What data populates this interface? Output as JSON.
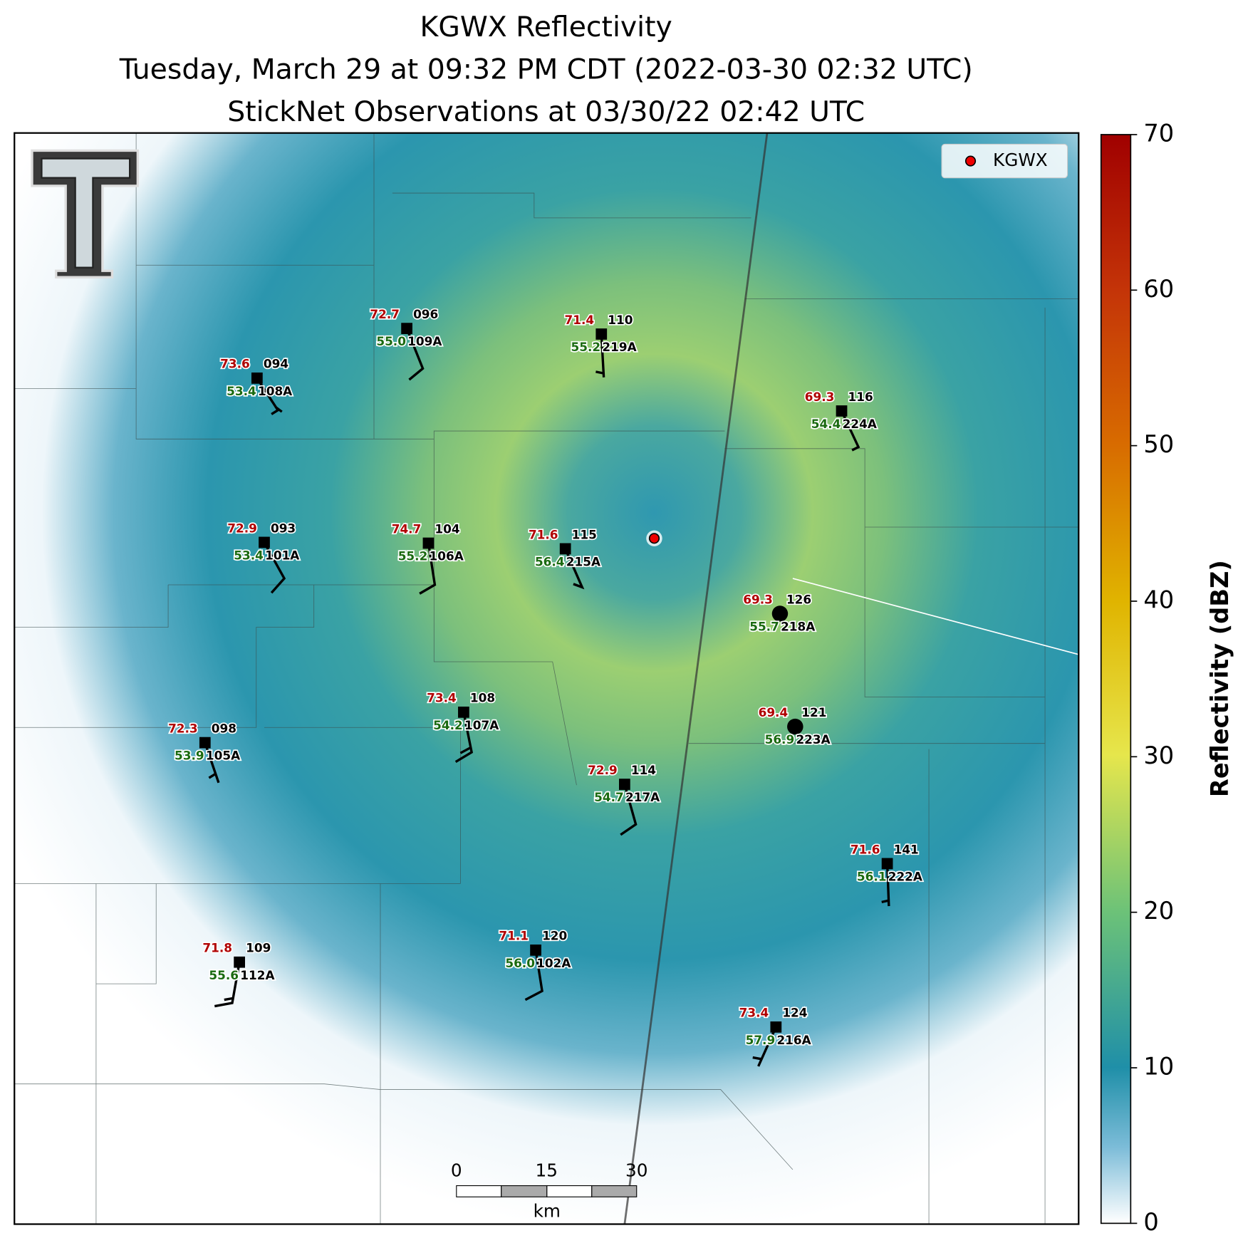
{
  "title_lines": [
    "KGWX Reflectivity",
    "Tuesday, March 29 at 09:32 PM CDT (2022-03-30 02:32 UTC)",
    "StickNet Observations at 03/30/22 02:42 UTC"
  ],
  "legend": {
    "label": "KGWX"
  },
  "stations": [
    {
      "temperature": "72.7",
      "dewpoint": "55.0",
      "number": "096",
      "id": "109A"
    },
    {
      "temperature": "71.4",
      "dewpoint": "55.2",
      "number": "110",
      "id": "219A"
    },
    {
      "temperature": "73.6",
      "dewpoint": "53.4",
      "number": "094",
      "id": "108A"
    },
    {
      "temperature": "69.3",
      "dewpoint": "54.4",
      "number": "116",
      "id": "224A"
    },
    {
      "temperature": "72.9",
      "dewpoint": "53.4",
      "number": "093",
      "id": "101A"
    },
    {
      "temperature": "74.7",
      "dewpoint": "55.2",
      "number": "104",
      "id": "106A"
    },
    {
      "temperature": "71.6",
      "dewpoint": "56.4",
      "number": "115",
      "id": "215A"
    },
    {
      "temperature": "69.3",
      "dewpoint": "55.7",
      "number": "126",
      "id": "218A"
    },
    {
      "temperature": "69.4",
      "dewpoint": "56.9",
      "number": "121",
      "id": "223A"
    },
    {
      "temperature": "73.4",
      "dewpoint": "54.2",
      "number": "108",
      "id": "107A"
    },
    {
      "temperature": "72.3",
      "dewpoint": "53.9",
      "number": "098",
      "id": "105A"
    },
    {
      "temperature": "72.9",
      "dewpoint": "54.7",
      "number": "114",
      "id": "217A"
    },
    {
      "temperature": "71.6",
      "dewpoint": "56.1",
      "number": "141",
      "id": "222A"
    },
    {
      "temperature": "71.8",
      "dewpoint": "55.6",
      "number": "109",
      "id": "112A"
    },
    {
      "temperature": "71.1",
      "dewpoint": "56.0",
      "number": "120",
      "id": "102A"
    },
    {
      "temperature": "73.4",
      "dewpoint": "57.9",
      "number": "124",
      "id": "216A"
    }
  ],
  "scale_bar": {
    "ticks": [
      0,
      15,
      30
    ],
    "unit": "km"
  },
  "colorbar": {
    "label": "Reflectivity (dBZ)",
    "lim": [
      0,
      70
    ],
    "ticks": [
      0,
      10,
      20,
      30,
      40,
      50,
      60,
      70
    ]
  }
}
